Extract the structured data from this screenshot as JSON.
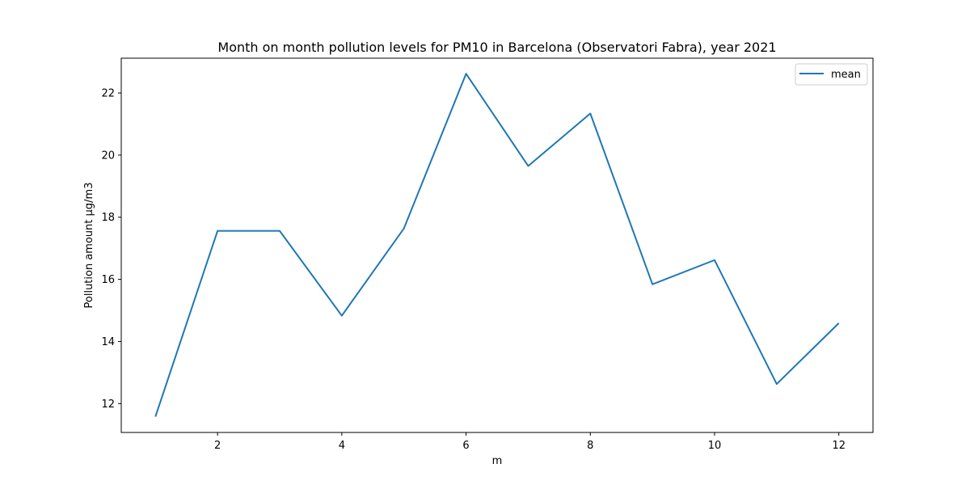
{
  "chart_data": {
    "type": "line",
    "title": "Month on month pollution levels for PM10 in Barcelona (Observatori Fabra), year 2021",
    "xlabel": "m",
    "ylabel": "Pollution amount μg/m3",
    "x": [
      1,
      2,
      3,
      4,
      5,
      6,
      7,
      8,
      9,
      10,
      11,
      12
    ],
    "series": [
      {
        "name": "mean",
        "color": "#1f77b4",
        "values": [
          11.58,
          17.56,
          17.56,
          14.83,
          17.64,
          22.62,
          19.65,
          21.34,
          15.84,
          16.62,
          12.63,
          14.59
        ]
      }
    ],
    "xlim": [
      0.45,
      12.55
    ],
    "ylim": [
      11.07,
      23.12
    ],
    "xticks": [
      2,
      4,
      6,
      8,
      10,
      12
    ],
    "yticks": [
      12,
      14,
      16,
      18,
      20,
      22
    ],
    "grid": false,
    "legend": "top-right"
  }
}
